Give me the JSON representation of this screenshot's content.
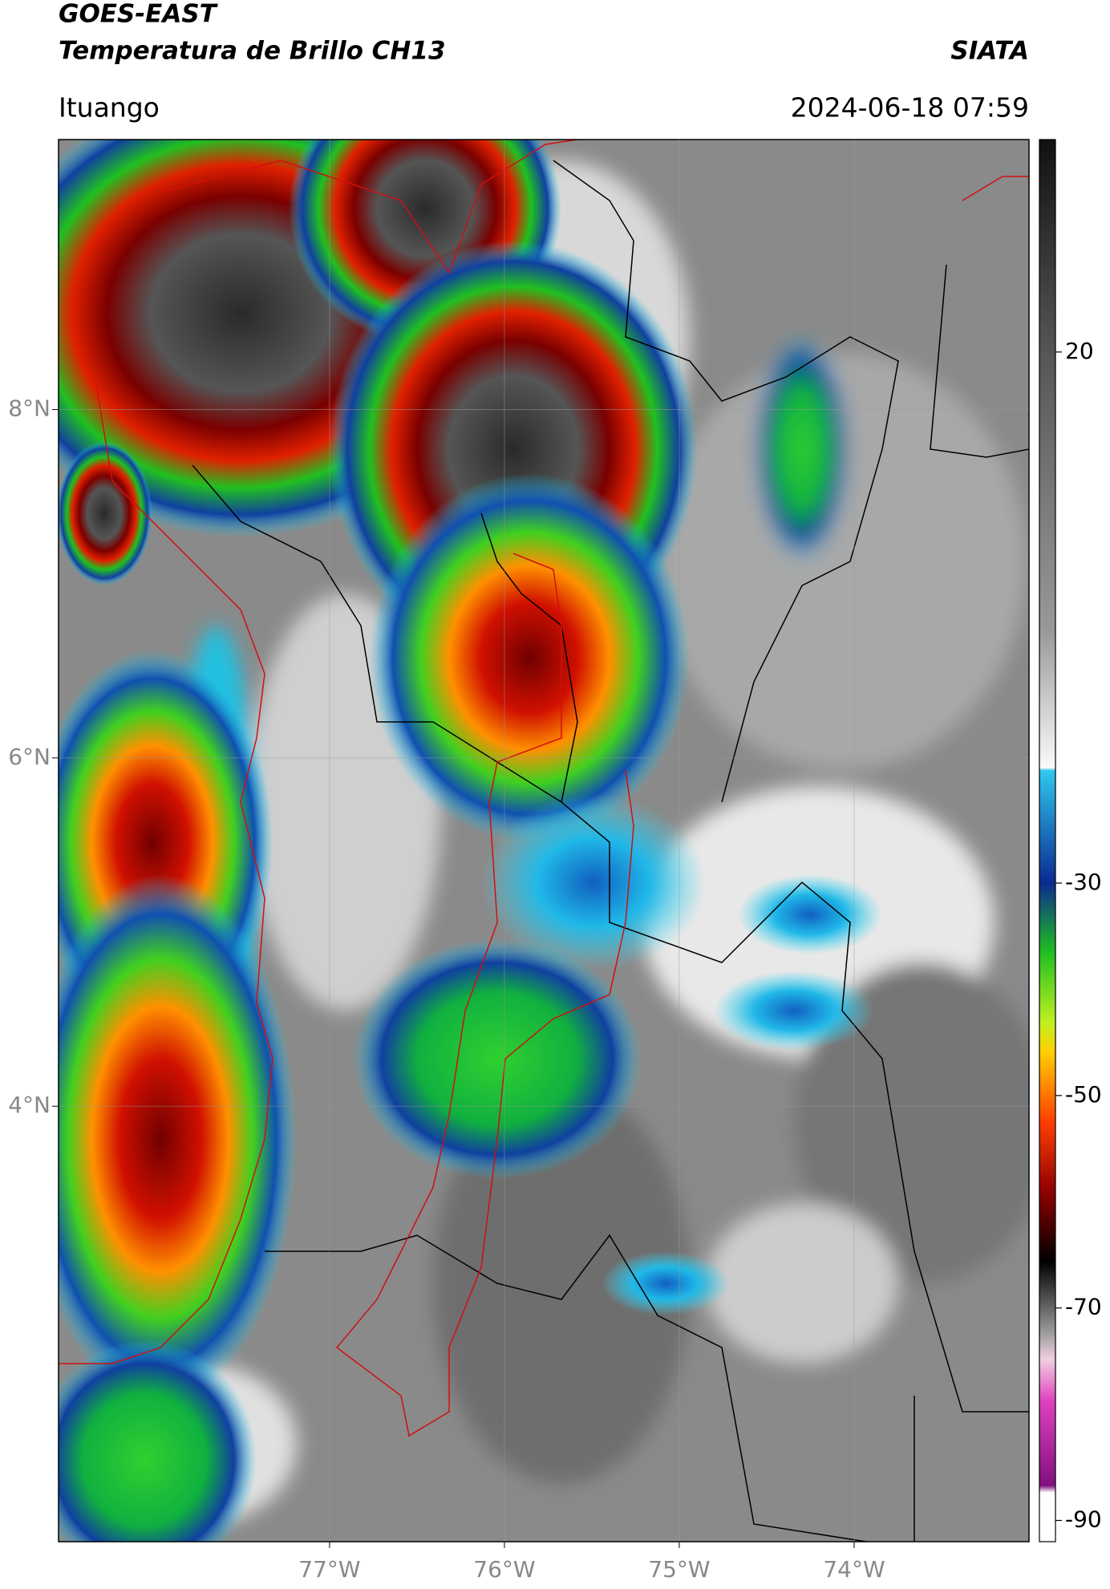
{
  "header": {
    "title": "GOES-EAST",
    "subtitle": "Temperatura de Brillo CH13",
    "brand": "SIATA",
    "location": "Ituango",
    "datetime": "2024-06-18 07:59"
  },
  "map": {
    "xlim": [
      -78.55,
      -73.0
    ],
    "ylim": [
      1.5,
      9.55
    ],
    "xticks": [
      {
        "value": -77,
        "label": "77°W"
      },
      {
        "value": -76,
        "label": "76°W"
      },
      {
        "value": -75,
        "label": "75°W"
      },
      {
        "value": -74,
        "label": "74°W"
      }
    ],
    "yticks": [
      {
        "value": 8,
        "label": "8°N"
      },
      {
        "value": 6,
        "label": "6°N"
      },
      {
        "value": 4,
        "label": "4°N"
      }
    ],
    "grid": true
  },
  "colorbar": {
    "lim": [
      -92,
      40
    ],
    "ticks": [
      20,
      -30,
      -50,
      -70,
      -90
    ]
  }
}
